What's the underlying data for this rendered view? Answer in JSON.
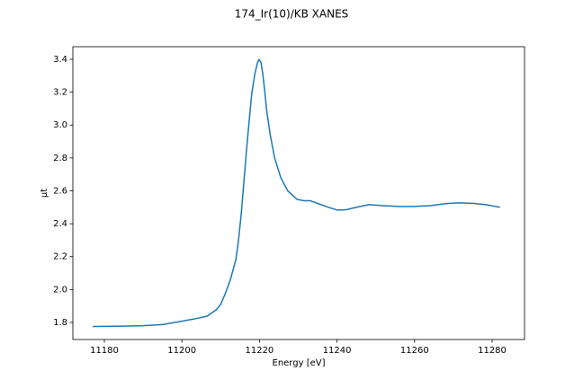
{
  "chart_data": {
    "type": "line",
    "title": "174_Ir(10)/KB XANES",
    "x_label": "Energy [eV]",
    "y_label": "μt",
    "x": [
      11177,
      11185,
      11190,
      11195,
      11199.5,
      11203,
      11206.5,
      11208.8,
      11210,
      11211.1,
      11212.5,
      11213.9,
      11214.6,
      11215.3,
      11216,
      11216.7,
      11217.4,
      11218,
      11218.8,
      11219.5,
      11219.9,
      11220.4,
      11220.8,
      11221.3,
      11221.8,
      11222.7,
      11223.9,
      11225.5,
      11227.3,
      11229.7,
      11231.5,
      11233.1,
      11235.4,
      11237.8,
      11240.1,
      11242.4,
      11245,
      11248.2,
      11252,
      11256,
      11259.8,
      11264,
      11268,
      11271.4,
      11275,
      11278.4,
      11282
    ],
    "series": [
      {
        "name": "μt",
        "color": "#1f77b4",
        "values": [
          1.775,
          1.777,
          1.78,
          1.787,
          1.805,
          1.82,
          1.838,
          1.876,
          1.91,
          1.97,
          2.06,
          2.18,
          2.3,
          2.46,
          2.66,
          2.86,
          3.04,
          3.19,
          3.31,
          3.38,
          3.398,
          3.38,
          3.32,
          3.22,
          3.1,
          2.95,
          2.8,
          2.68,
          2.6,
          2.548,
          2.54,
          2.54,
          2.52,
          2.5,
          2.483,
          2.485,
          2.5,
          2.516,
          2.51,
          2.505,
          2.505,
          2.51,
          2.522,
          2.527,
          2.524,
          2.516,
          2.5
        ]
      }
    ],
    "xlim": [
      11171.88,
      11288.35
    ],
    "ylim": [
      1.696,
      3.4765
    ],
    "xticks": [
      11180,
      11200,
      11220,
      11240,
      11260,
      11280
    ],
    "yticks": [
      1.8,
      {
        "value": 2.0,
        "label": "2.0"
      },
      2.2,
      2.4,
      2.6,
      2.8,
      {
        "value": 3.0,
        "label": "3.0"
      },
      3.2,
      3.4
    ]
  }
}
